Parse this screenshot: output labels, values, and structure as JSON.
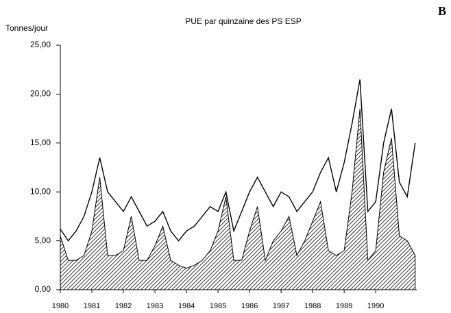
{
  "chart_data": {
    "type": "line-area",
    "title": "PUE par quinzaine des PS ESP",
    "ylabel": "Tonnes/jour",
    "annotation": "B",
    "x": [
      1980,
      1980.25,
      1980.5,
      1980.75,
      1981,
      1981.25,
      1981.5,
      1981.75,
      1982,
      1982.25,
      1982.5,
      1982.75,
      1983,
      1983.25,
      1983.5,
      1983.75,
      1984,
      1984.25,
      1984.5,
      1984.75,
      1985,
      1985.25,
      1985.5,
      1985.75,
      1986,
      1986.25,
      1986.5,
      1986.75,
      1987,
      1987.25,
      1987.5,
      1987.75,
      1988,
      1988.25,
      1988.5,
      1988.75,
      1989,
      1989.25,
      1989.5,
      1989.75,
      1990,
      1990.25,
      1990.5,
      1990.75,
      1991,
      1991.25
    ],
    "series": [
      {
        "color": "#000000",
        "style": "line",
        "values": [
          6.2,
          5,
          6,
          7.5,
          10,
          13.5,
          10,
          9,
          8,
          9.5,
          8,
          6.5,
          7,
          8,
          6,
          5,
          6,
          6.5,
          7.5,
          8.5,
          8,
          10,
          6,
          8,
          10,
          11.5,
          10,
          8.5,
          10,
          9.5,
          8,
          9,
          10,
          12,
          13.5,
          10,
          13,
          17,
          21.5,
          8,
          9,
          15,
          18.5,
          11,
          9.5,
          15
        ]
      },
      {
        "color": "#000000",
        "style": "hatched-area",
        "values": [
          5.5,
          3,
          3,
          3.5,
          6,
          11.5,
          3.5,
          3.5,
          4,
          7.5,
          3,
          3,
          4.5,
          6.5,
          3,
          2.5,
          2.2,
          2.5,
          3,
          4,
          6,
          9.5,
          3,
          3,
          6,
          8.5,
          3,
          5,
          6,
          7.5,
          3.5,
          5,
          7,
          9,
          4,
          3.5,
          4,
          10,
          18.5,
          3,
          4,
          12,
          15.5,
          5.5,
          5,
          3.5
        ]
      }
    ],
    "xlim": [
      1980,
      1991.3
    ],
    "xticks": [
      1980,
      1981,
      1982,
      1983,
      1984,
      1985,
      1986,
      1987,
      1988,
      1989,
      1990
    ],
    "ylim": [
      0,
      25
    ],
    "yticks": [
      {
        "value": 0,
        "label": "0,00"
      },
      {
        "value": 5,
        "label": "5,00"
      },
      {
        "value": 10,
        "label": "10,00"
      },
      {
        "value": 15,
        "label": "15,00"
      },
      {
        "value": 20,
        "label": "20,00"
      },
      {
        "value": 25,
        "label": "25,00"
      }
    ],
    "grid": false
  }
}
